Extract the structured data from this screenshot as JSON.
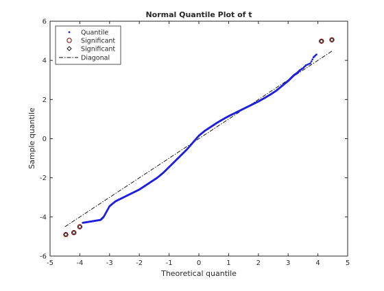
{
  "chart_data": {
    "type": "scatter",
    "title": "Normal Quantile Plot of t",
    "xlabel": "Theoretical quantile",
    "ylabel": "Sample quantile",
    "xlim": [
      -5,
      5
    ],
    "ylim": [
      -6,
      6
    ],
    "xticks": [
      "-5",
      "-4",
      "-3",
      "-2",
      "-1",
      "0",
      "1",
      "2",
      "3",
      "4",
      "5"
    ],
    "yticks": [
      "-6",
      "-4",
      "-2",
      "0",
      "2",
      "4",
      "6"
    ],
    "grid": false,
    "legend_position": "top-left",
    "legend": [
      "Quantile",
      "Significant",
      "Significant",
      "Diagonal"
    ],
    "colors": {
      "quantile": "#1f1fe0",
      "significant_circle": "#8b0000",
      "significant_diamond": "#000000",
      "diagonal": "#000000",
      "axes": "#262626"
    },
    "series": [
      {
        "name": "Quantile",
        "marker": "dot",
        "x": [
          -3.9,
          -3.7,
          -3.5,
          -3.3,
          -3.2,
          -3.0,
          -2.8,
          -2.6,
          -2.4,
          -2.2,
          -2.0,
          -1.8,
          -1.6,
          -1.4,
          -1.2,
          -1.0,
          -0.8,
          -0.6,
          -0.4,
          -0.2,
          0.0,
          0.2,
          0.4,
          0.6,
          0.8,
          1.0,
          1.2,
          1.4,
          1.6,
          1.8,
          2.0,
          2.2,
          2.4,
          2.6,
          2.8,
          3.0,
          3.1,
          3.2,
          3.3,
          3.4,
          3.5,
          3.6,
          3.75,
          3.85,
          3.95
        ],
        "y": [
          -4.3,
          -4.25,
          -4.2,
          -4.15,
          -4.0,
          -3.45,
          -3.2,
          -3.05,
          -2.9,
          -2.75,
          -2.6,
          -2.4,
          -2.2,
          -2.0,
          -1.75,
          -1.45,
          -1.15,
          -0.85,
          -0.55,
          -0.2,
          0.15,
          0.4,
          0.6,
          0.8,
          0.98,
          1.15,
          1.3,
          1.45,
          1.6,
          1.75,
          1.9,
          2.07,
          2.25,
          2.45,
          2.7,
          2.95,
          3.1,
          3.25,
          3.35,
          3.5,
          3.6,
          3.75,
          3.85,
          4.15,
          4.3
        ]
      },
      {
        "name": "Significant",
        "marker": "circle",
        "x": [
          -4.47,
          -4.2,
          -4.0,
          4.12,
          4.47
        ],
        "y": [
          -4.9,
          -4.8,
          -4.5,
          4.98,
          5.05
        ]
      },
      {
        "name": "Significant",
        "marker": "diamond",
        "x": [
          -4.47,
          -4.2,
          -4.0,
          4.12,
          4.47
        ],
        "y": [
          -4.9,
          -4.8,
          -4.5,
          4.98,
          5.05
        ]
      },
      {
        "name": "Diagonal",
        "marker": "dash-dot",
        "x": [
          -4.5,
          4.5
        ],
        "y": [
          -4.5,
          4.5
        ]
      }
    ]
  }
}
